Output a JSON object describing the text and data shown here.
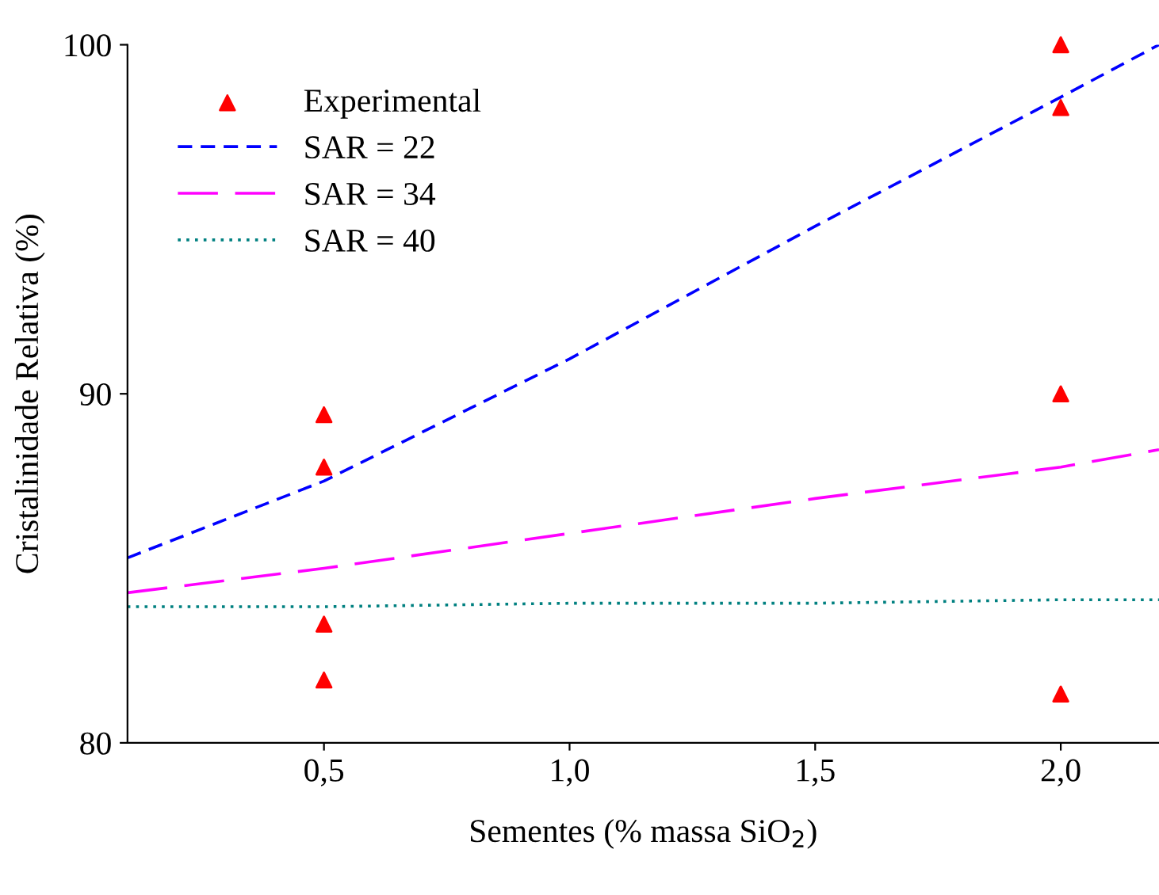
{
  "chart_data": {
    "type": "line",
    "xlabel": "Sementes (% massa SiO$_{2}$)",
    "ylabel": "Cristalinidade Relativa (%)",
    "xlim": [
      0.1,
      2.2
    ],
    "ylim": [
      80,
      100
    ],
    "xticks": [
      {
        "value": 0.5,
        "label": "0,5"
      },
      {
        "value": 1.0,
        "label": "1,0"
      },
      {
        "value": 1.5,
        "label": "1,5"
      },
      {
        "value": 2.0,
        "label": "2,0"
      }
    ],
    "yticks": [
      80,
      90,
      100
    ],
    "grid": false,
    "legend": "top left",
    "series": [
      {
        "name": "Experimental",
        "type": "scatter",
        "marker": "triangle",
        "color": "#ff0000",
        "x": [
          0.5,
          0.5,
          0.5,
          0.5,
          2.0,
          2.0,
          2.0,
          2.0
        ],
        "values": [
          89.4,
          87.9,
          83.4,
          81.8,
          100,
          98.2,
          90.0,
          81.4
        ]
      },
      {
        "name": "SAR = 22",
        "line_style": "dashed",
        "color": "#0000ff",
        "x": [
          0.1,
          0.5,
          1.0,
          1.5,
          2.0,
          2.2
        ],
        "values": [
          85.3,
          87.5,
          91.0,
          94.8,
          98.5,
          100
        ]
      },
      {
        "name": "SAR = 34",
        "line_style": "dashed",
        "color": "#ff00ff",
        "x": [
          0.1,
          0.5,
          1.0,
          1.5,
          2.0,
          2.2
        ],
        "values": [
          84.3,
          85.0,
          86.0,
          87.0,
          87.9,
          88.4
        ]
      },
      {
        "name": "SAR = 40",
        "line_style": "dotted",
        "color": "#008080",
        "x": [
          0.1,
          0.5,
          1.0,
          1.5,
          2.0,
          2.2
        ],
        "values": [
          83.9,
          83.9,
          84.0,
          84.0,
          84.1,
          84.1
        ]
      }
    ]
  }
}
